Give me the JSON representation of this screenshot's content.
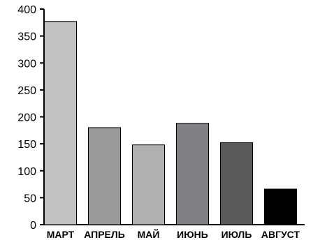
{
  "chart_data": {
    "type": "bar",
    "title": "",
    "xlabel": "",
    "ylabel": "",
    "ylim": [
      0,
      400
    ],
    "yticks": [
      0,
      50,
      100,
      150,
      200,
      250,
      300,
      350,
      400
    ],
    "grid": false,
    "categories": [
      "МАРТ",
      "АПРЕЛЬ",
      "МАЙ",
      "ИЮНЬ",
      "ИЮЛЬ",
      "АВГУСТ"
    ],
    "values": [
      377,
      180,
      148,
      188,
      152,
      66
    ],
    "colors": [
      "#c0c1c3",
      "#98999b",
      "#b0b1b3",
      "#808184",
      "#58595b",
      "#000000"
    ]
  }
}
